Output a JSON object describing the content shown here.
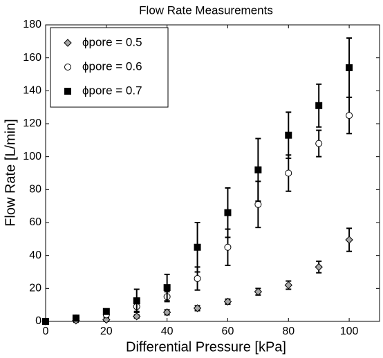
{
  "chart_data": {
    "type": "scatter",
    "title": "Flow Rate Measurements",
    "x_label": "Differential Pressure [kPa]",
    "y_label": "Flow Rate [L/min]",
    "xlim": [
      0,
      110
    ],
    "ylim": [
      0,
      180
    ],
    "xticks": [
      0,
      20,
      40,
      60,
      80,
      100
    ],
    "yticks": [
      0,
      20,
      40,
      60,
      80,
      100,
      120,
      140,
      160,
      180
    ],
    "grid": false,
    "legend": "upper left",
    "x": [
      0,
      10,
      20,
      30,
      40,
      50,
      60,
      70,
      80,
      90,
      100
    ],
    "series": [
      {
        "name": "ϕpore = 0.5",
        "color": "#a6a6a6",
        "marker": "diamond",
        "values": [
          0,
          0.5,
          1,
          3,
          5.5,
          8,
          12,
          18,
          22,
          33,
          49.5
        ],
        "errors": [
          1,
          1,
          1,
          1,
          1.5,
          1.5,
          1.5,
          2,
          2.5,
          3.5,
          7
        ]
      },
      {
        "name": "ϕpore = 0.6",
        "color": "#ffffff",
        "marker": "circle",
        "values": [
          0,
          2,
          4,
          9,
          15,
          26,
          45,
          71,
          90,
          108,
          125
        ],
        "errors": [
          0.5,
          1,
          1.5,
          3,
          3,
          7,
          11,
          14,
          11,
          8,
          11
        ]
      },
      {
        "name": "ϕpore = 0.7",
        "color": "#000000",
        "marker": "square",
        "values": [
          0,
          2,
          6,
          12.5,
          20.5,
          45,
          66,
          92,
          113,
          131,
          154
        ],
        "errors": [
          0.5,
          1,
          1.5,
          7,
          8,
          15,
          15,
          19,
          14,
          13,
          18
        ]
      }
    ]
  }
}
